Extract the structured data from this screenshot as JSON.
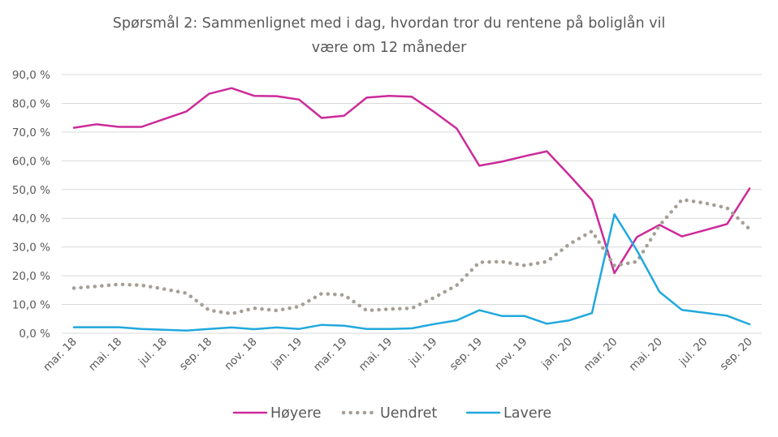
{
  "chart_data": {
    "type": "line",
    "title": "Spørsmål 2: Sammenlignet  med i dag, hvordan tror du rentene på boliglån vil være om 12 måneder",
    "title_lines": [
      "Spørsmål 2: Sammenlignet  med i dag, hvordan tror du rentene på boliglån vil",
      "være om 12 måneder"
    ],
    "x_labels": [
      "mar. 18",
      "mai. 18",
      "jul. 18",
      "sep. 18",
      "nov. 18",
      "jan. 19",
      "mar. 19",
      "mai. 19",
      "jul. 19",
      "sep. 19",
      "nov. 19",
      "jan. 20",
      "mar. 20",
      "mai. 20",
      "jul. 20",
      "sep. 20"
    ],
    "y_ticks": [
      "0,0 %",
      "10,0 %",
      "20,0 %",
      "30,0 %",
      "40,0 %",
      "50,0 %",
      "60,0 %",
      "70,0 %",
      "80,0 %",
      "90,0 %"
    ],
    "ylim": [
      0,
      90
    ],
    "grid": true,
    "legend_position": "bottom",
    "series": [
      {
        "name": "Høyere",
        "color": "#cc2a99",
        "style": "solid",
        "values": [
          71.5,
          72.7,
          71.8,
          71.8,
          74.5,
          77.2,
          83.3,
          85.3,
          82.6,
          82.5,
          81.3,
          74.9,
          75.7,
          82.0,
          82.6,
          82.3,
          77.0,
          71.2,
          58.3,
          59.7,
          61.6,
          63.3,
          55.0,
          46.3,
          20.9,
          33.5,
          37.7,
          33.7,
          35.8,
          38.0,
          50.4
        ]
      },
      {
        "name": "Uendret",
        "color": "#a59f96",
        "style": "dotted",
        "values": [
          15.7,
          16.3,
          17.0,
          16.7,
          15.4,
          13.9,
          8.0,
          6.8,
          8.7,
          7.9,
          9.3,
          13.8,
          13.3,
          7.9,
          8.4,
          8.7,
          12.4,
          16.7,
          24.7,
          24.9,
          23.6,
          24.9,
          31.0,
          35.5,
          23.5,
          24.9,
          37.5,
          46.5,
          45.3,
          43.6,
          36.2
        ]
      },
      {
        "name": "Lavere",
        "color": "#21a8dc",
        "style": "solid",
        "values": [
          2.1,
          2.1,
          2.1,
          1.5,
          1.2,
          0.9,
          1.5,
          2.0,
          1.4,
          2.0,
          1.5,
          2.9,
          2.6,
          1.5,
          1.5,
          1.7,
          3.2,
          4.5,
          8.0,
          6.0,
          6.0,
          3.3,
          4.5,
          7.0,
          41.4,
          28.8,
          14.4,
          8.1,
          7.1,
          6.1,
          3.1
        ]
      }
    ]
  }
}
